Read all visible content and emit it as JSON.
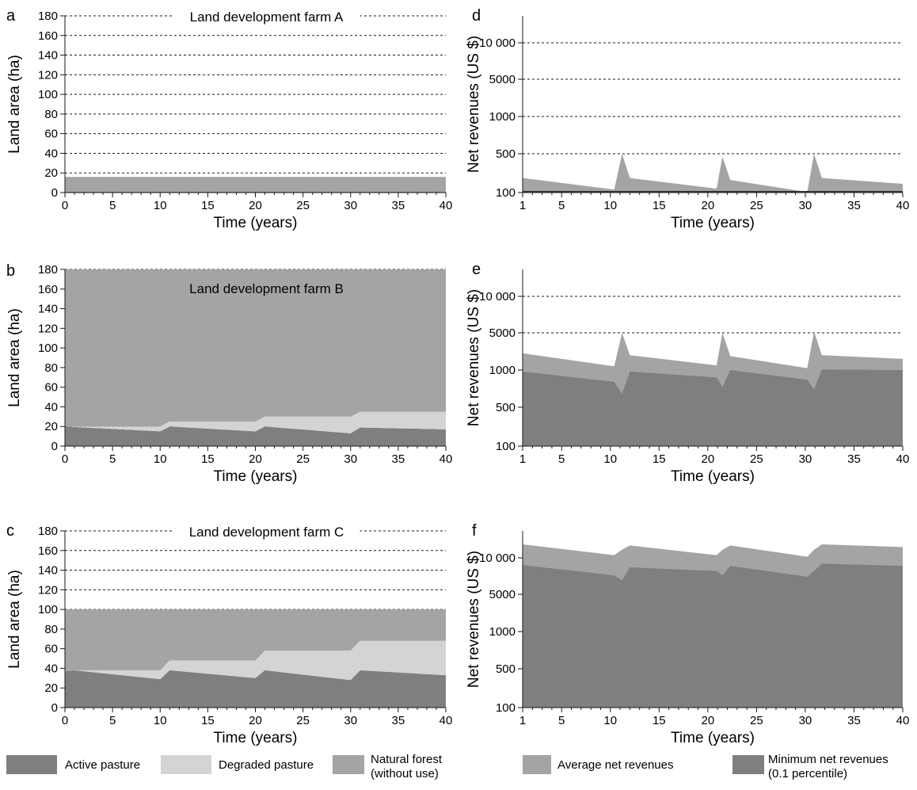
{
  "colors": {
    "active_pasture": "#7e7f81",
    "degraded_pasture": "#d3d4d6",
    "natural_forest": "#a3a4a6",
    "average_net_revenues": "#a3a4a6",
    "minimum_net_revenues": "#7e7f81"
  },
  "legend": {
    "active": "Active pasture",
    "degraded": "Degraded pasture",
    "forest_line1": "Natural forest",
    "forest_line2": "(without use)",
    "average": "Average net revenues",
    "minimum_line1": "Minimum net revenues",
    "minimum_line2": "(0.1 percentile)"
  },
  "chart_data": [
    {
      "id": "a",
      "letter": "a",
      "type": "area",
      "title": "Land development farm A",
      "xlabel": "Time (years)",
      "ylabel": "Land area (ha)",
      "xlim": [
        0,
        40
      ],
      "ylim": [
        0,
        180
      ],
      "xticks": [
        0,
        5,
        10,
        15,
        20,
        25,
        30,
        35,
        40
      ],
      "yticks": [
        0,
        20,
        40,
        60,
        80,
        100,
        120,
        140,
        160,
        180
      ],
      "grid": "horizontal dotted",
      "x": [
        0,
        10,
        11,
        20,
        21,
        30,
        31,
        40
      ],
      "series": [
        {
          "name": "Active pasture",
          "values": [
            1,
            1,
            1,
            1,
            1,
            1,
            1,
            1
          ]
        },
        {
          "name": "Degraded pasture",
          "values": [
            0,
            0,
            0,
            0,
            0,
            0,
            0,
            0
          ]
        },
        {
          "name": "Natural forest (without use)",
          "values": [
            15,
            15,
            15,
            15,
            15,
            15,
            15,
            15
          ]
        }
      ]
    },
    {
      "id": "b",
      "letter": "b",
      "type": "area",
      "title": "Land development farm B",
      "xlabel": "Time (years)",
      "ylabel": "Land area (ha)",
      "xlim": [
        0,
        40
      ],
      "ylim": [
        0,
        180
      ],
      "xticks": [
        0,
        5,
        10,
        15,
        20,
        25,
        30,
        35,
        40
      ],
      "yticks": [
        0,
        20,
        40,
        60,
        80,
        100,
        120,
        140,
        160,
        180
      ],
      "grid": "horizontal dotted",
      "x": [
        0,
        10,
        11,
        20,
        21,
        30,
        31,
        40
      ],
      "series": [
        {
          "name": "Active pasture",
          "values": [
            20,
            15,
            20,
            15,
            20,
            13,
            19,
            17
          ]
        },
        {
          "name": "Degraded pasture",
          "values": [
            0,
            5,
            5,
            10,
            10,
            17,
            16,
            18
          ]
        },
        {
          "name": "Natural forest (without use)",
          "values": [
            160,
            160,
            155,
            155,
            150,
            150,
            145,
            145
          ]
        }
      ]
    },
    {
      "id": "c",
      "letter": "c",
      "type": "area",
      "title": "Land development farm C",
      "xlabel": "Time (years)",
      "ylabel": "Land area (ha)",
      "xlim": [
        0,
        40
      ],
      "ylim": [
        0,
        180
      ],
      "xticks": [
        0,
        5,
        10,
        15,
        20,
        25,
        30,
        35,
        40
      ],
      "yticks": [
        0,
        20,
        40,
        60,
        80,
        100,
        120,
        140,
        160,
        180
      ],
      "grid": "horizontal dotted",
      "x": [
        0,
        1,
        10,
        11,
        20,
        21,
        30,
        31,
        40
      ],
      "series": [
        {
          "name": "Active pasture",
          "values": [
            37,
            38,
            29,
            38,
            30,
            38,
            28,
            38,
            33
          ]
        },
        {
          "name": "Degraded pasture",
          "values": [
            0,
            0,
            9,
            10,
            18,
            20,
            30,
            30,
            35
          ]
        },
        {
          "name": "Natural forest (without use)",
          "values": [
            63,
            62,
            62,
            52,
            52,
            42,
            42,
            32,
            32
          ]
        }
      ]
    },
    {
      "id": "d",
      "letter": "d",
      "type": "area",
      "title": "",
      "xlabel": "Time (years)",
      "ylabel": "Net revenues (US $)",
      "xlim": [
        1,
        40
      ],
      "ylim": [
        100,
        15000
      ],
      "yscale": "categorical-log",
      "xticks": [
        1,
        5,
        10,
        15,
        20,
        25,
        30,
        35,
        40
      ],
      "yticks": [
        100,
        500,
        1000,
        5000,
        10000
      ],
      "ytick_labels": [
        "100",
        "500",
        "1000",
        "5000",
        "10 000"
      ],
      "grid": "horizontal dotted",
      "x": [
        1,
        10.4,
        11.2,
        12,
        20.9,
        21.5,
        22.3,
        30.2,
        30.9,
        31.7,
        40
      ],
      "series": [
        {
          "name": "Average net revenues",
          "values": [
            250,
            130,
            500,
            250,
            140,
            470,
            230,
            105,
            500,
            250,
            190
          ]
        },
        {
          "name": "Minimum net revenues (0.1 percentile)",
          "values": [
            100,
            100,
            100,
            100,
            100,
            100,
            100,
            100,
            100,
            100,
            100
          ]
        }
      ]
    },
    {
      "id": "e",
      "letter": "e",
      "type": "area",
      "title": "",
      "xlabel": "Time (years)",
      "ylabel": "Net revenues (US $)",
      "xlim": [
        1,
        40
      ],
      "ylim": [
        100,
        15000
      ],
      "yscale": "categorical-log",
      "xticks": [
        1,
        5,
        10,
        15,
        20,
        25,
        30,
        35,
        40
      ],
      "yticks": [
        100,
        500,
        1000,
        5000,
        10000
      ],
      "ytick_labels": [
        "100",
        "500",
        "1000",
        "5000",
        "10 000"
      ],
      "grid": "horizontal dotted",
      "x": [
        1,
        10.4,
        11.2,
        12,
        20.9,
        21.5,
        22.3,
        30.2,
        30.9,
        31.7,
        40
      ],
      "series": [
        {
          "name": "Average net revenues",
          "values": [
            2800,
            1400,
            5000,
            2600,
            1500,
            5000,
            2500,
            1200,
            5200,
            2600,
            2200
          ]
        },
        {
          "name": "Minimum net revenues (0.1 percentile)",
          "values": [
            980,
            840,
            680,
            980,
            900,
            770,
            1000,
            870,
            740,
            1050,
            1000
          ]
        }
      ]
    },
    {
      "id": "f",
      "letter": "f",
      "type": "area",
      "title": "",
      "xlabel": "Time (years)",
      "ylabel": "Net revenues (US $)",
      "xlim": [
        1,
        40
      ],
      "ylim": [
        100,
        15000
      ],
      "yscale": "categorical-log",
      "xticks": [
        1,
        5,
        10,
        15,
        20,
        25,
        30,
        35,
        40
      ],
      "yticks": [
        100,
        500,
        1000,
        5000,
        10000
      ],
      "ytick_labels": [
        "100",
        "500",
        "1000",
        "5000",
        "10 000"
      ],
      "grid": "horizontal dotted",
      "x": [
        1,
        10.4,
        11.2,
        12,
        20.9,
        21.5,
        22.3,
        30.2,
        30.9,
        31.7,
        40
      ],
      "series": [
        {
          "name": "Average net revenues",
          "values": [
            12500,
            10500,
            11500,
            12300,
            10500,
            11500,
            12300,
            10200,
            11500,
            12500,
            12000
          ]
        },
        {
          "name": "Minimum net revenues (0.1 percentile)",
          "values": [
            9000,
            7600,
            6900,
            8700,
            8200,
            7600,
            8900,
            7400,
            8200,
            9200,
            8900
          ]
        }
      ]
    }
  ]
}
